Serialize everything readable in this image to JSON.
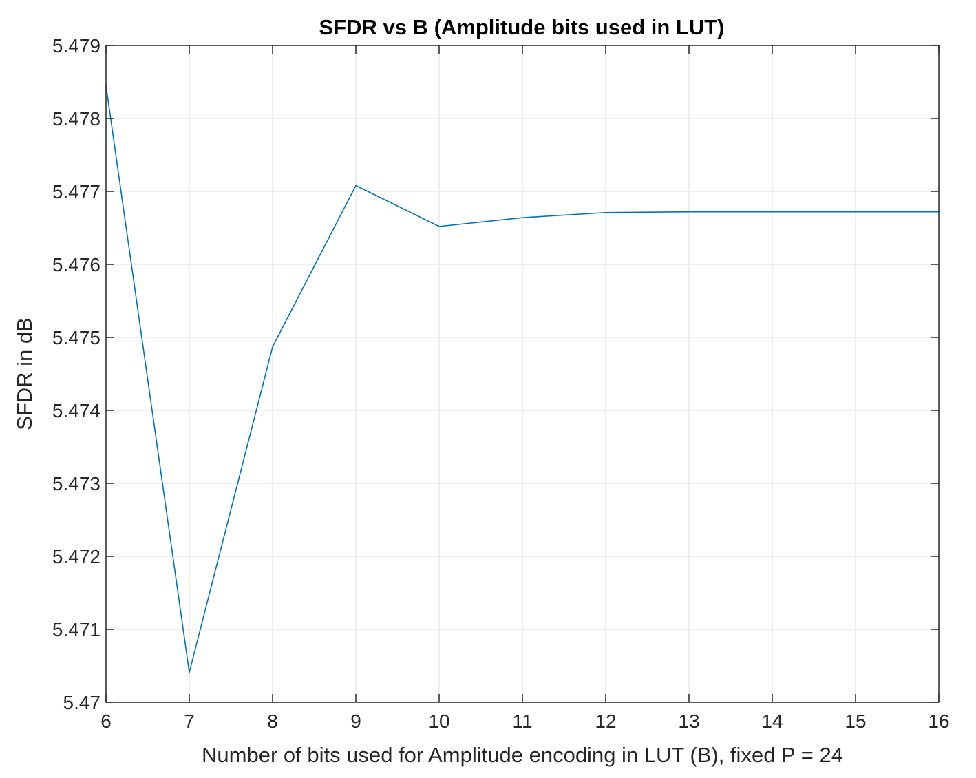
{
  "chart_data": {
    "type": "line",
    "title": "SFDR vs B (Amplitude bits used in LUT)",
    "xlabel": "Number of bits used for Amplitude encoding in LUT (B), fixed P = 24",
    "ylabel": "SFDR in dB",
    "xlim": [
      6,
      16
    ],
    "ylim": [
      5.47,
      5.479
    ],
    "xticks": [
      "6",
      "7",
      "8",
      "9",
      "10",
      "11",
      "12",
      "13",
      "14",
      "15",
      "16"
    ],
    "yticks": [
      "5.47",
      "5.471",
      "5.472",
      "5.473",
      "5.474",
      "5.475",
      "5.476",
      "5.477",
      "5.478",
      "5.479"
    ],
    "grid": true,
    "line_color": "#0072BD",
    "series": [
      {
        "x": [
          6,
          7,
          8,
          9,
          10,
          11,
          12,
          13,
          14,
          15,
          16
        ],
        "y": [
          5.47845,
          5.47041,
          5.47487,
          5.47708,
          5.47652,
          5.47664,
          5.47671,
          5.47672,
          5.47672,
          5.47672,
          5.47672
        ]
      }
    ]
  }
}
